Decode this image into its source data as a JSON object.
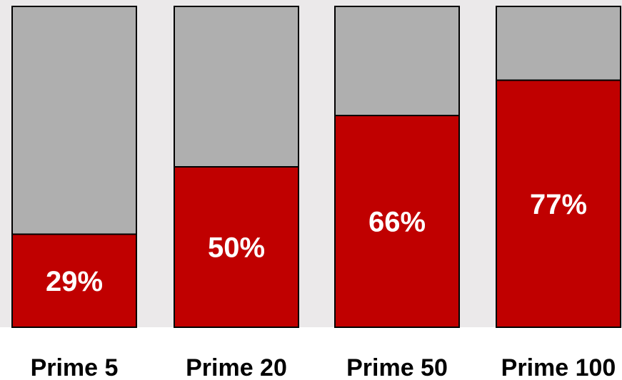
{
  "chart_data": {
    "type": "bar",
    "stacked": true,
    "categories": [
      "Prime 5",
      "Prime 20",
      "Prime 50",
      "Prime 100"
    ],
    "values": [
      29,
      50,
      66,
      77
    ],
    "data_labels": [
      "29%",
      "50%",
      "66%",
      "77%"
    ],
    "ylim": [
      0,
      100
    ],
    "title": "",
    "xlabel": "",
    "ylabel": "",
    "grid": false,
    "legend": "none",
    "colors": {
      "value": "#c00000",
      "remainder": "#afafaf",
      "plot_background": "#ebe9ea",
      "outline": "#000000"
    }
  }
}
